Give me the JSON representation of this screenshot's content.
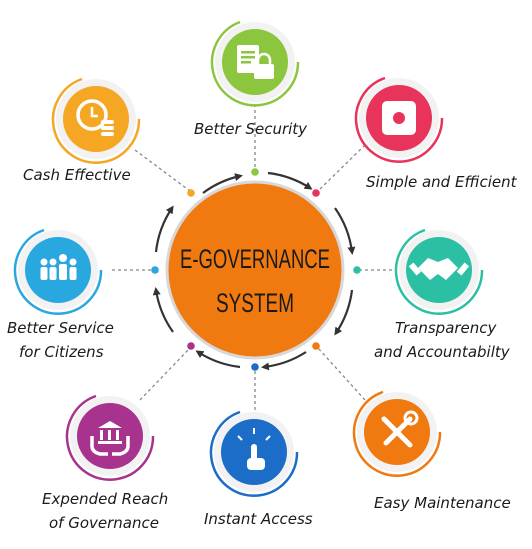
{
  "center": {
    "line1": "E-GOVERNANCE",
    "line2": "SYSTEM",
    "color": "#f07a10"
  },
  "nodes": [
    {
      "key": "security",
      "label": "Better Security",
      "color": "#8cc63f",
      "icon": "document-lock-icon"
    },
    {
      "key": "simple",
      "label": "Simple and Efficient",
      "color": "#e8345a",
      "icon": "stop-button-icon"
    },
    {
      "key": "transparency",
      "label_line1": "Transparency",
      "label_line2": "and Accountabilty",
      "color": "#2bbfa4",
      "icon": "handshake-icon"
    },
    {
      "key": "maintenance",
      "label": "Easy Maintenance",
      "color": "#f07a10",
      "icon": "tools-icon"
    },
    {
      "key": "access",
      "label": "Instant Access",
      "color": "#1c6dc8",
      "icon": "touch-hand-icon"
    },
    {
      "key": "reach",
      "label_line1": "Expended Reach",
      "label_line2": "of Governance",
      "color": "#a8338f",
      "icon": "hands-building-icon"
    },
    {
      "key": "citizens",
      "label_line1": "Better Service",
      "label_line2": "for Citizens",
      "color": "#29a8e0",
      "icon": "people-group-icon"
    },
    {
      "key": "cash",
      "label": "Cash Effective",
      "color": "#f5a623",
      "icon": "clock-coins-icon"
    }
  ]
}
